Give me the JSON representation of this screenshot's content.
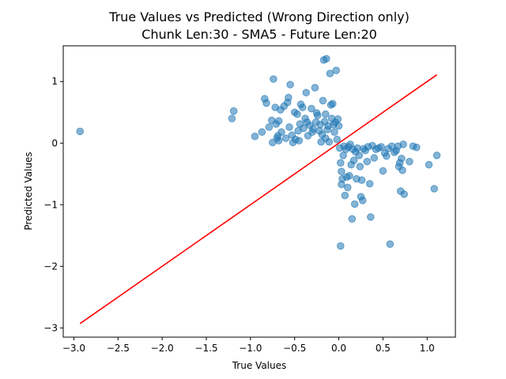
{
  "chart_data": {
    "type": "scatter",
    "title": "True Values vs Predicted (Wrong Direction only)",
    "subtitle": "Chunk Len:30 - SMA5 - Future Len:20",
    "xlabel": "True Values",
    "ylabel": "Predicted Values",
    "xlim": [
      -3.12,
      1.32
    ],
    "ylim": [
      -3.15,
      1.58
    ],
    "xticks": [
      -3.0,
      -2.5,
      -2.0,
      -1.5,
      -1.0,
      -0.5,
      0.0,
      0.5,
      1.0
    ],
    "xtick_labels": [
      "−3.0",
      "−2.5",
      "−2.0",
      "−1.5",
      "−1.0",
      "−0.5",
      "0.0",
      "0.5",
      "1.0"
    ],
    "yticks": [
      -3,
      -2,
      -1,
      0,
      1
    ],
    "ytick_labels": [
      "−3",
      "−2",
      "−1",
      "0",
      "1"
    ],
    "grid": false,
    "point_color": "#1f77b4",
    "line_color": "#ff0000",
    "reference_line": {
      "x": [
        -2.93,
        1.11
      ],
      "y": [
        -2.93,
        1.11
      ]
    },
    "points": [
      [
        -2.93,
        0.19
      ],
      [
        -1.21,
        0.4
      ],
      [
        -1.19,
        0.52
      ],
      [
        -0.95,
        0.11
      ],
      [
        -0.87,
        0.18
      ],
      [
        -0.84,
        0.72
      ],
      [
        -0.82,
        0.65
      ],
      [
        -0.79,
        0.26
      ],
      [
        -0.76,
        0.37
      ],
      [
        -0.75,
        0.01
      ],
      [
        -0.74,
        1.04
      ],
      [
        -0.72,
        0.58
      ],
      [
        -0.71,
        0.31
      ],
      [
        -0.7,
        0.08
      ],
      [
        -0.69,
        0.12
      ],
      [
        -0.68,
        0.36
      ],
      [
        -0.68,
        0.04
      ],
      [
        -0.66,
        0.54
      ],
      [
        -0.65,
        0.18
      ],
      [
        -0.62,
        0.6
      ],
      [
        -0.6,
        0.08
      ],
      [
        -0.58,
        0.66
      ],
      [
        -0.57,
        0.74
      ],
      [
        -0.56,
        0.26
      ],
      [
        -0.55,
        0.95
      ],
      [
        -0.53,
        0.13
      ],
      [
        -0.52,
        0.01
      ],
      [
        -0.5,
        0.5
      ],
      [
        -0.49,
        0.06
      ],
      [
        -0.47,
        0.47
      ],
      [
        -0.46,
        0.2
      ],
      [
        -0.45,
        0.04
      ],
      [
        -0.44,
        0.31
      ],
      [
        -0.43,
        0.63
      ],
      [
        -0.41,
        0.58
      ],
      [
        -0.4,
        0.24
      ],
      [
        -0.38,
        0.4
      ],
      [
        -0.37,
        0.82
      ],
      [
        -0.36,
        0.34
      ],
      [
        -0.35,
        0.12
      ],
      [
        -0.33,
        0.29
      ],
      [
        -0.31,
        0.56
      ],
      [
        -0.3,
        0.18
      ],
      [
        -0.29,
        0.23
      ],
      [
        -0.27,
        0.9
      ],
      [
        -0.26,
        0.34
      ],
      [
        -0.24,
        0.45
      ],
      [
        -0.22,
        0.2
      ],
      [
        -0.21,
        0.3
      ],
      [
        -0.2,
        0.02
      ],
      [
        -0.19,
        0.14
      ],
      [
        -0.18,
        0.69
      ],
      [
        -0.17,
        1.35
      ],
      [
        -0.16,
        0.35
      ],
      [
        -0.15,
        0.08
      ],
      [
        -0.14,
        1.37
      ],
      [
        -0.13,
        0.22
      ],
      [
        -0.12,
        0.28
      ],
      [
        -0.11,
        0.02
      ],
      [
        -0.1,
        1.13
      ],
      [
        -0.09,
        0.62
      ],
      [
        -0.08,
        0.4
      ],
      [
        -0.07,
        0.64
      ],
      [
        -0.06,
        0.3
      ],
      [
        -0.05,
        0.18
      ],
      [
        -0.04,
        0.34
      ],
      [
        -0.03,
        1.18
      ],
      [
        -0.02,
        0.06
      ],
      [
        -0.01,
        0.39
      ],
      [
        0.0,
        0.28
      ],
      [
        -0.15,
        0.47
      ],
      [
        -0.25,
        0.49
      ],
      [
        0.01,
        -0.08
      ],
      [
        0.02,
        -0.32
      ],
      [
        0.03,
        -0.46
      ],
      [
        0.03,
        -0.67
      ],
      [
        0.02,
        -1.67
      ],
      [
        0.04,
        -0.58
      ],
      [
        0.05,
        -0.2
      ],
      [
        0.06,
        -0.05
      ],
      [
        0.07,
        -0.85
      ],
      [
        0.08,
        -0.1
      ],
      [
        0.09,
        -0.55
      ],
      [
        0.1,
        -0.72
      ],
      [
        0.11,
        -0.06
      ],
      [
        0.12,
        -0.53
      ],
      [
        0.13,
        -0.02
      ],
      [
        0.14,
        -0.35
      ],
      [
        0.15,
        -1.23
      ],
      [
        0.16,
        -0.1
      ],
      [
        0.17,
        -0.28
      ],
      [
        0.18,
        -0.99
      ],
      [
        0.19,
        -0.14
      ],
      [
        0.2,
        -0.58
      ],
      [
        0.21,
        -0.08
      ],
      [
        0.23,
        -0.2
      ],
      [
        0.24,
        -0.38
      ],
      [
        0.25,
        -0.87
      ],
      [
        0.26,
        -0.6
      ],
      [
        0.27,
        -0.93
      ],
      [
        0.28,
        -0.09
      ],
      [
        0.3,
        -0.12
      ],
      [
        0.32,
        -0.3
      ],
      [
        0.33,
        -0.06
      ],
      [
        0.35,
        -0.66
      ],
      [
        0.36,
        -1.2
      ],
      [
        0.38,
        -0.04
      ],
      [
        0.4,
        -0.24
      ],
      [
        0.42,
        -0.1
      ],
      [
        0.45,
        -0.08
      ],
      [
        0.48,
        -0.06
      ],
      [
        0.5,
        -0.45
      ],
      [
        0.52,
        -0.16
      ],
      [
        0.54,
        -0.21
      ],
      [
        0.56,
        -0.09
      ],
      [
        0.58,
        -1.64
      ],
      [
        0.6,
        -0.05
      ],
      [
        0.63,
        -0.15
      ],
      [
        0.65,
        -0.12
      ],
      [
        0.67,
        -0.05
      ],
      [
        0.68,
        -0.38
      ],
      [
        0.69,
        -0.32
      ],
      [
        0.7,
        -0.78
      ],
      [
        0.71,
        -0.25
      ],
      [
        0.72,
        -0.44
      ],
      [
        0.73,
        -0.02
      ],
      [
        0.74,
        -0.83
      ],
      [
        0.8,
        -0.3
      ],
      [
        0.84,
        -0.05
      ],
      [
        0.88,
        -0.07
      ],
      [
        1.02,
        -0.35
      ],
      [
        1.08,
        -0.74
      ],
      [
        1.11,
        -0.2
      ]
    ]
  }
}
